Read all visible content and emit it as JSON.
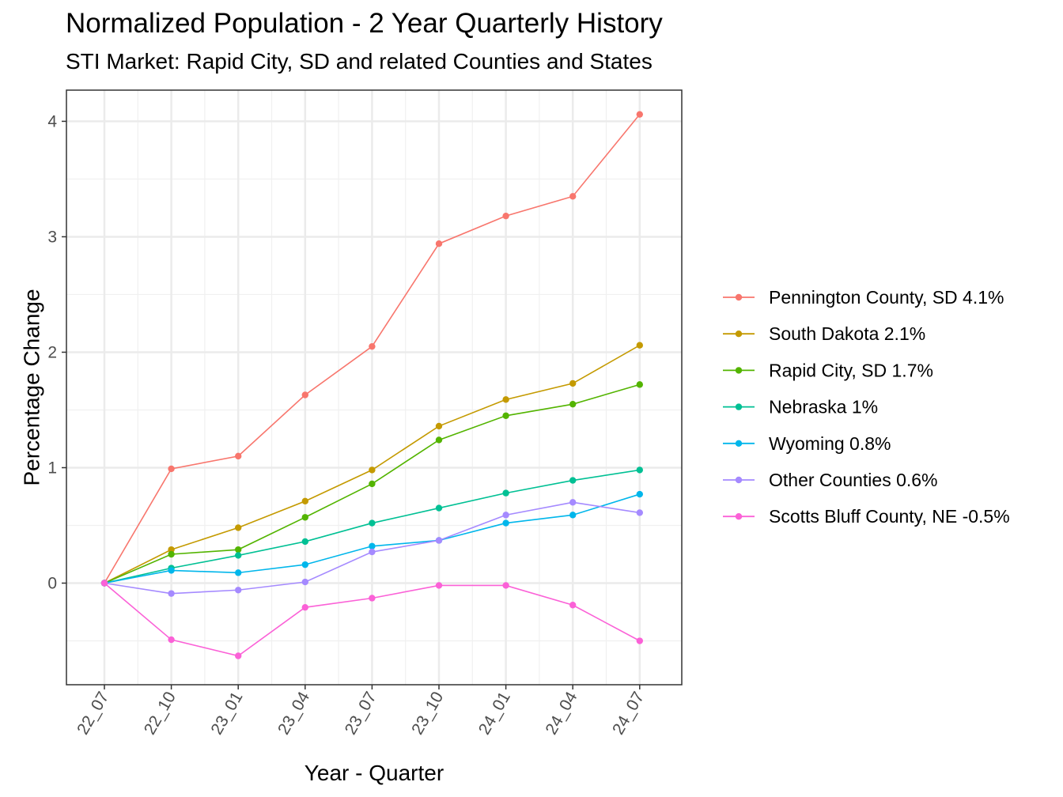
{
  "chart_data": {
    "type": "line",
    "title": "Normalized Population - 2 Year Quarterly History",
    "subtitle": "STI Market: Rapid City, SD and related Counties and States",
    "xlabel": "Year - Quarter",
    "ylabel": "Percentage Change",
    "categories": [
      "22_07",
      "22_10",
      "23_01",
      "23_04",
      "23_07",
      "23_10",
      "24_01",
      "24_04",
      "24_07"
    ],
    "ylim": [
      -0.88,
      4.27
    ],
    "yticks": [
      0,
      1,
      2,
      3,
      4
    ],
    "grid": true,
    "legend_position": "right",
    "series": [
      {
        "name": "Pennington County, SD 4.1%",
        "color": "#F8766D",
        "values": [
          0,
          0.99,
          1.1,
          1.63,
          2.05,
          2.94,
          3.18,
          3.35,
          4.06
        ]
      },
      {
        "name": "South Dakota 2.1%",
        "color": "#C49A00",
        "values": [
          0,
          0.29,
          0.48,
          0.71,
          0.98,
          1.36,
          1.59,
          1.73,
          2.06
        ]
      },
      {
        "name": "Rapid City, SD 1.7%",
        "color": "#53B400",
        "values": [
          0,
          0.25,
          0.29,
          0.57,
          0.86,
          1.24,
          1.45,
          1.55,
          1.72
        ]
      },
      {
        "name": "Nebraska 1%",
        "color": "#00C094",
        "values": [
          0,
          0.13,
          0.24,
          0.36,
          0.52,
          0.65,
          0.78,
          0.89,
          0.98
        ]
      },
      {
        "name": "Wyoming 0.8%",
        "color": "#00B6EB",
        "values": [
          0,
          0.11,
          0.09,
          0.16,
          0.32,
          0.37,
          0.52,
          0.59,
          0.77
        ]
      },
      {
        "name": "Other Counties 0.6%",
        "color": "#A58AFF",
        "values": [
          0,
          -0.09,
          -0.06,
          0.01,
          0.27,
          0.37,
          0.59,
          0.7,
          0.61
        ]
      },
      {
        "name": "Scotts Bluff County, NE -0.5%",
        "color": "#FB61D7",
        "values": [
          0,
          -0.49,
          -0.63,
          -0.21,
          -0.13,
          -0.02,
          -0.02,
          -0.19,
          -0.5
        ]
      }
    ]
  }
}
